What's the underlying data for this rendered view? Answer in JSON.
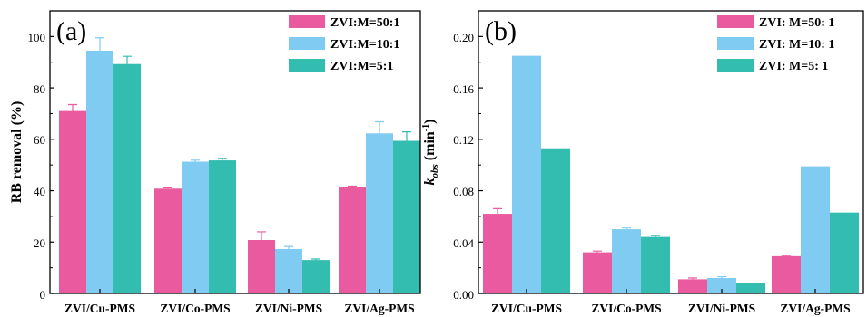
{
  "colors": {
    "s1": "#ea5a9e",
    "s2": "#7fcbf2",
    "s3": "#33bcb0"
  },
  "chart_data": [
    {
      "type": "bar",
      "panel_label": "(a)",
      "categories": [
        "ZVI/Cu-PMS",
        "ZVI/Co-PMS",
        "ZVI/Ni-PMS",
        "ZVI/Ag-PMS"
      ],
      "ylabel": "RB removal (%)",
      "ylim": [
        0,
        110
      ],
      "yticks": [
        "0",
        "20",
        "40",
        "60",
        "80",
        "100"
      ],
      "series": [
        {
          "name": "ZVI:M=50:1",
          "values": [
            71,
            40.8,
            20.8,
            41.5
          ],
          "errors": [
            2.5,
            0.3,
            3.2,
            0.3
          ]
        },
        {
          "name": "ZVI:M=10:1",
          "values": [
            94.5,
            51.3,
            17.3,
            62.3
          ],
          "errors": [
            5,
            0.6,
            1,
            4.5
          ]
        },
        {
          "name": "ZVI:M=5:1",
          "values": [
            89.3,
            51.8,
            13,
            59.4
          ],
          "errors": [
            3,
            0.8,
            0.4,
            3.5
          ]
        }
      ],
      "legend_position": "top-right"
    },
    {
      "type": "bar",
      "panel_label": "(b)",
      "categories": [
        "ZVI/Cu-PMS",
        "ZVI/Co-PMS",
        "ZVI/Ni-PMS",
        "ZVI/Ag-PMS"
      ],
      "ylabel_main": "k",
      "ylabel_sub": "obs",
      "ylabel_unit_open": " (min",
      "ylabel_unit_sup": "-1",
      "ylabel_unit_close": ")",
      "ylim": [
        0,
        0.22
      ],
      "yticks": [
        "0.00",
        "0.04",
        "0.08",
        "0.12",
        "0.16",
        "0.20"
      ],
      "series": [
        {
          "name": "ZVI: M=50: 1",
          "values": [
            0.062,
            0.032,
            0.011,
            0.029
          ],
          "errors": [
            0.004,
            0.001,
            0.001,
            0.0005
          ]
        },
        {
          "name": "ZVI: M=10: 1",
          "values": [
            0.185,
            0.05,
            0.012,
            0.099
          ],
          "errors": [
            0,
            0.001,
            0.001,
            0
          ]
        },
        {
          "name": "ZVI: M=5: 1",
          "values": [
            0.113,
            0.044,
            0.008,
            0.063
          ],
          "errors": [
            0,
            0.001,
            0,
            0
          ]
        }
      ],
      "legend_position": "top-right"
    }
  ]
}
